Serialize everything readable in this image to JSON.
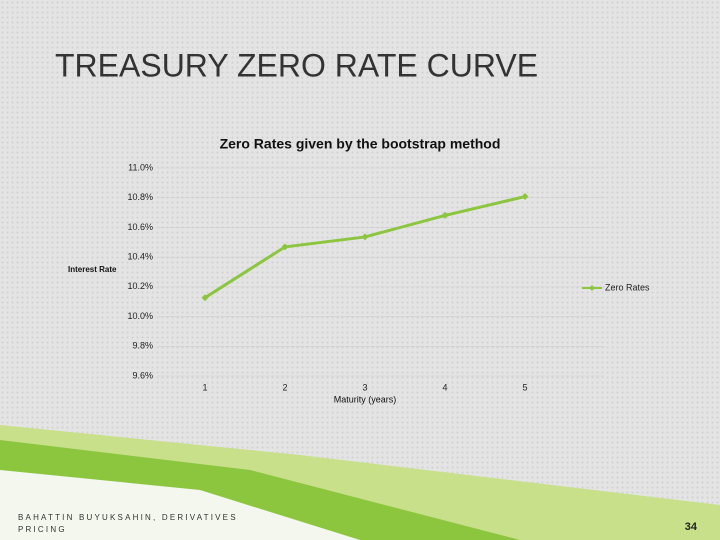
{
  "slide": {
    "title": "TREASURY ZERO RATE CURVE",
    "footer": "BAHATTIN BUYUKSAHIN, DERIVATIVES PRICING",
    "page_number": "34"
  },
  "chart_data": {
    "type": "line",
    "title": "Zero Rates given by the bootstrap method",
    "x_label": "Maturity (years)",
    "y_label": "Interest Rate",
    "categories": [
      "1",
      "2",
      "3",
      "4",
      "5"
    ],
    "series": [
      {
        "name": "Zero Rates",
        "color": "#8cc63f",
        "values": [
          10.127,
          10.469,
          10.536,
          10.681,
          10.808
        ]
      }
    ],
    "ylim": [
      9.6,
      11.0
    ],
    "yticks": [
      {
        "value": 9.6,
        "label": "9.6%"
      },
      {
        "value": 9.8,
        "label": "9.8%"
      },
      {
        "value": 10.0,
        "label": "10.0%"
      },
      {
        "value": 10.2,
        "label": "10.2%"
      },
      {
        "value": 10.4,
        "label": "10.4%"
      },
      {
        "value": 10.6,
        "label": "10.6%"
      },
      {
        "value": 10.8,
        "label": "10.8%"
      },
      {
        "value": 11.0,
        "label": "11.0%"
      }
    ],
    "grid": true,
    "legend": "right"
  }
}
